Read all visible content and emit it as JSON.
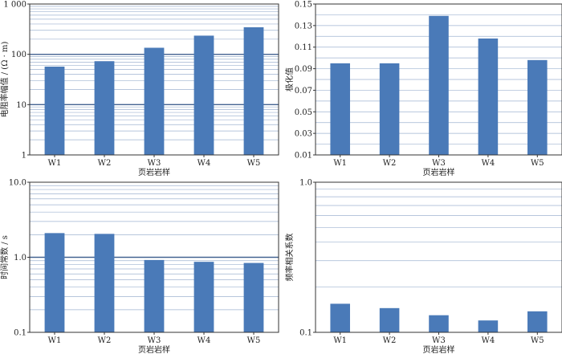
{
  "chart_data": [
    {
      "type": "bar",
      "categories": [
        "W1",
        "W2",
        "W3",
        "W4",
        "W5"
      ],
      "values": [
        57,
        73,
        135,
        235,
        345
      ],
      "xlabel": "页岩岩样",
      "ylabel": "电阻率幅值 / (Ω · m)",
      "yscale": "log",
      "ylim": [
        1,
        1000
      ],
      "yticks": [
        "1",
        "10",
        "100",
        "1 000"
      ],
      "grid": true,
      "bar_color": "#4a7ab8"
    },
    {
      "type": "bar",
      "categories": [
        "W1",
        "W2",
        "W3",
        "W4",
        "W5"
      ],
      "values": [
        0.095,
        0.095,
        0.139,
        0.118,
        0.098
      ],
      "xlabel": "页岩岩样",
      "ylabel": "极化值",
      "yscale": "linear",
      "ylim": [
        0.01,
        0.15
      ],
      "yticks": [
        "0.01",
        "0.03",
        "0.05",
        "0.07",
        "0.09",
        "0.11",
        "0.13",
        "0.15"
      ],
      "grid": true,
      "bar_color": "#4a7ab8"
    },
    {
      "type": "bar",
      "categories": [
        "W1",
        "W2",
        "W3",
        "W4",
        "W5"
      ],
      "values": [
        2.1,
        2.05,
        0.92,
        0.87,
        0.84
      ],
      "xlabel": "页岩岩样",
      "ylabel": "时间常数 / s",
      "yscale": "log",
      "ylim": [
        0.1,
        10
      ],
      "yticks": [
        "0.1",
        "1.0",
        "10.0"
      ],
      "grid": true,
      "bar_color": "#4a7ab8"
    },
    {
      "type": "bar",
      "categories": [
        "W1",
        "W2",
        "W3",
        "W4",
        "W5"
      ],
      "values": [
        0.155,
        0.145,
        0.13,
        0.12,
        0.138
      ],
      "xlabel": "页岩岩样",
      "ylabel": "频率相关系数",
      "yscale": "log",
      "ylim": [
        0.1,
        1.0
      ],
      "yticks": [
        "0.1",
        "1.0"
      ],
      "grid": true,
      "bar_color": "#4a7ab8"
    }
  ]
}
